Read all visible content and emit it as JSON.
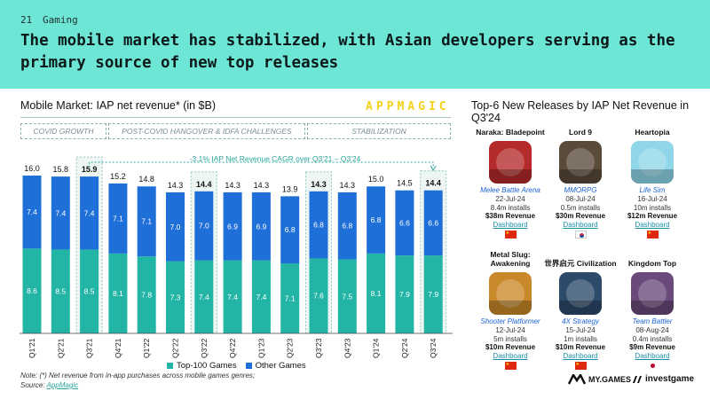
{
  "header": {
    "slide_number": "21",
    "section": "Gaming",
    "headline": "The mobile market has stabilized, with Asian developers serving as the primary source of new top releases"
  },
  "chart": {
    "title": "Mobile Market: IAP net revenue* (in $B)",
    "brand": "APPMAGIC",
    "phases": [
      "COVID GROWTH",
      "POST-COVID HANGOVER & IDFA CHALLENGES",
      "STABILIZATION"
    ],
    "cagr": "-3.1% IAP Net Revenue CAGR over Q3'21 – Q3'24",
    "note": "Note: (*) Net revenue from in-app purchases across mobile games genres;",
    "source_prefix": "Source: ",
    "source_link": "AppMagic"
  },
  "chart_data": {
    "type": "bar",
    "stacked": true,
    "categories": [
      "Q1'21",
      "Q2'21",
      "Q3'21",
      "Q4'21",
      "Q1'22",
      "Q2'22",
      "Q3'22",
      "Q4'22",
      "Q1'23",
      "Q2'23",
      "Q3'23",
      "Q4'23",
      "Q1'24",
      "Q2'24",
      "Q3'24"
    ],
    "series": [
      {
        "name": "Top-100 Games",
        "color": "#22b5a5",
        "values": [
          8.6,
          8.5,
          8.5,
          8.1,
          7.8,
          7.3,
          7.4,
          7.4,
          7.4,
          7.1,
          7.6,
          7.5,
          8.1,
          7.9,
          7.9
        ]
      },
      {
        "name": "Other Games",
        "color": "#1f6fd8",
        "values": [
          7.4,
          7.4,
          7.4,
          7.1,
          7.1,
          7.0,
          7.0,
          6.9,
          6.9,
          6.8,
          6.8,
          6.8,
          6.8,
          6.6,
          6.6
        ]
      }
    ],
    "totals": [
      "16.0",
      "15.8",
      "15.9",
      "15.2",
      "14.8",
      "14.3",
      "14.4",
      "14.3",
      "14.3",
      "13.9",
      "14.3",
      "14.3",
      "15.0",
      "14.5",
      "14.4"
    ],
    "highlighted": [
      "Q3'21",
      "Q3'22",
      "Q3'23",
      "Q3'24"
    ]
  },
  "releases": {
    "title": "Top-6 New Releases by IAP Net Revenue in Q3'24",
    "games": [
      {
        "name": "Naraka: Bladepoint",
        "genre": "Melee Battle Arena",
        "date": "22-Jul-24",
        "installs": "8.4m installs",
        "revenue": "$38m Revenue",
        "link": "Dashboard",
        "country": "CN",
        "icon_color": "#b52a2a"
      },
      {
        "name": "Lord 9",
        "genre": "MMORPG",
        "date": "08-Jul-24",
        "installs": "0.5m installs",
        "revenue": "$30m Revenue",
        "link": "Dashboard",
        "country": "KR",
        "icon_color": "#5a4a3a"
      },
      {
        "name": "Heartopia",
        "genre": "Life Sim",
        "date": "16-Jul-24",
        "installs": "10m installs",
        "revenue": "$12m Revenue",
        "link": "Dashboard",
        "country": "CN",
        "icon_color": "#8fd6e8"
      },
      {
        "name": "Metal Slug: Awakening",
        "genre": "Shooter Platformer",
        "date": "12-Jul-24",
        "installs": "5m installs",
        "revenue": "$10m Revenue",
        "link": "Dashboard",
        "country": "CN",
        "icon_color": "#c9882a"
      },
      {
        "name": "世界启元 Civilization",
        "genre": "4X Strategy",
        "date": "15-Jul-24",
        "installs": "1m installs",
        "revenue": "$10m Revenue",
        "link": "Dashboard",
        "country": "CN",
        "icon_color": "#2c4a6a"
      },
      {
        "name": "Kingdom Top",
        "genre": "Team Battler",
        "date": "08-Aug-24",
        "installs": "0.4m installs",
        "revenue": "$9m Revenue",
        "link": "Dashboard",
        "country": "JP",
        "icon_color": "#6a4a7a"
      }
    ]
  },
  "footer": {
    "logo1": "MY.GAMES",
    "logo2": "investgame"
  }
}
